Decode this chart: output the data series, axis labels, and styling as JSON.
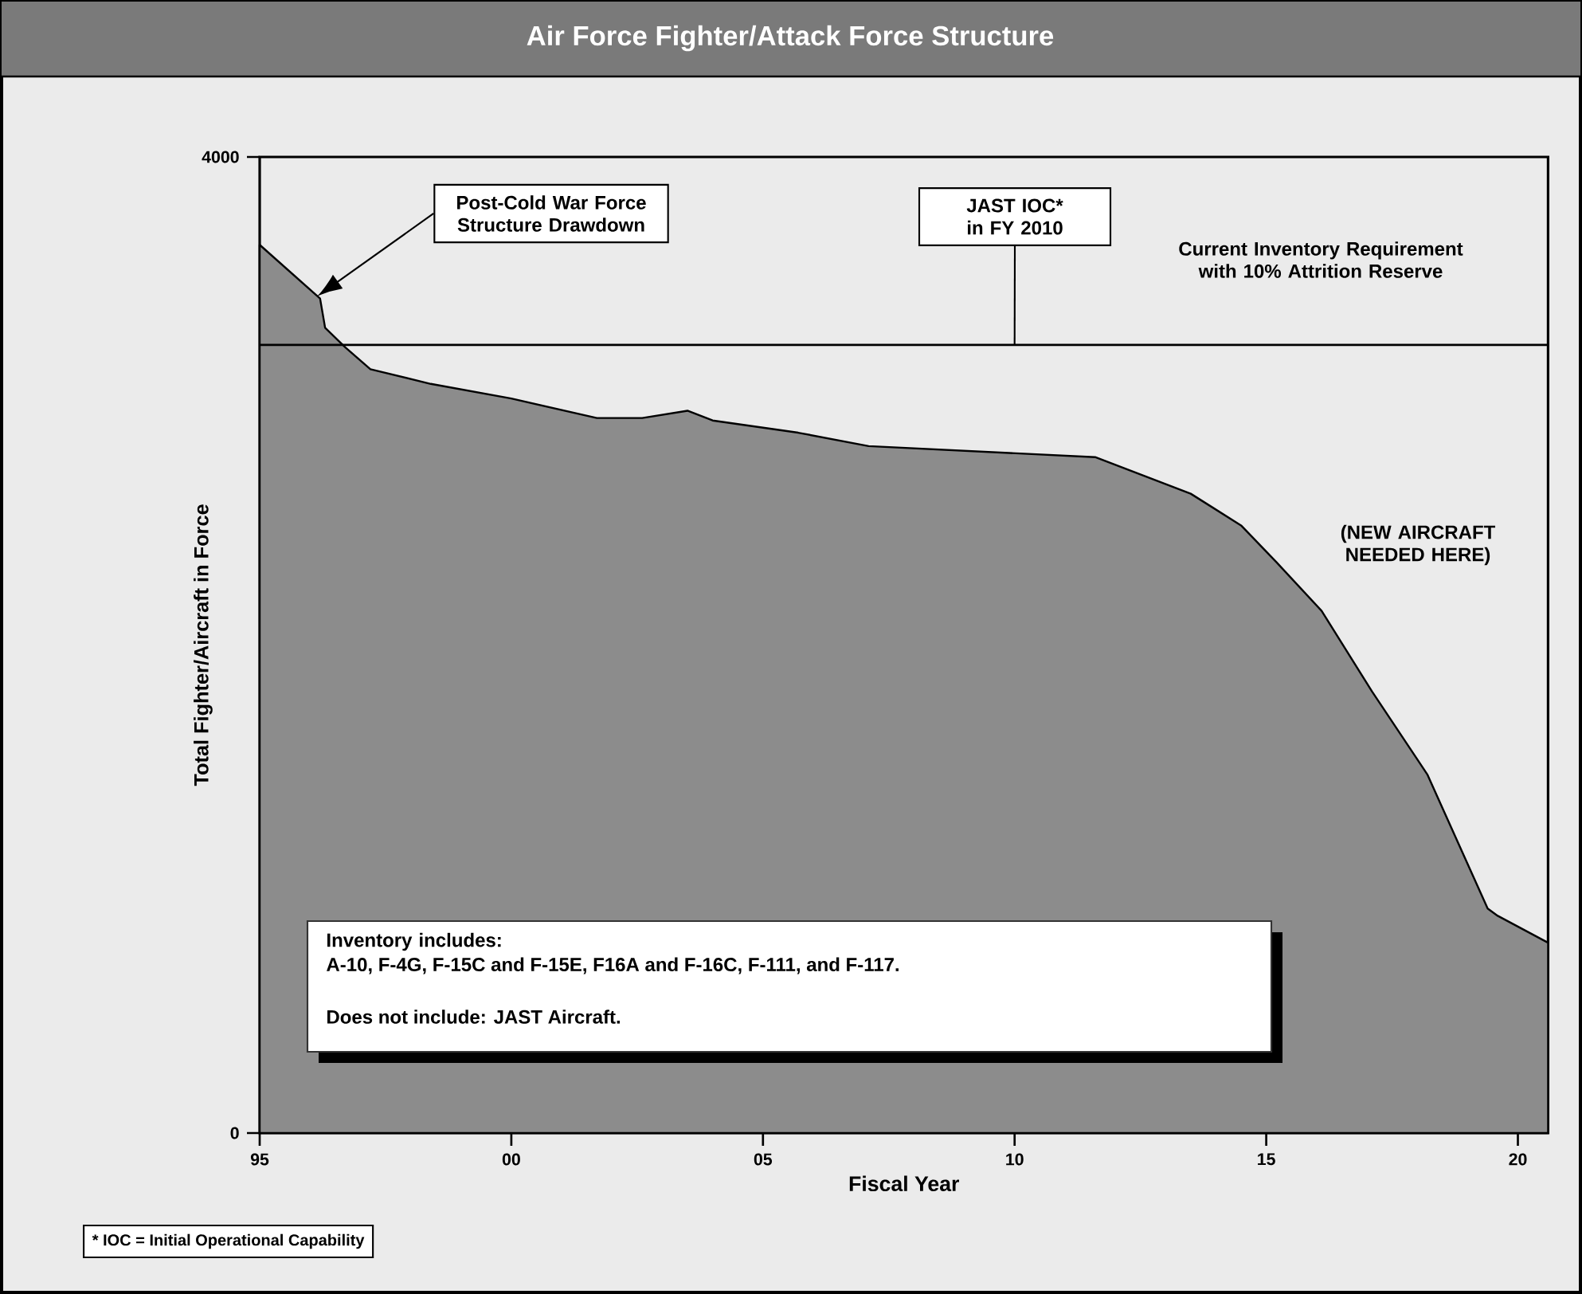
{
  "chart_data": {
    "type": "area",
    "title": "Air Force Fighter/Attack Force Structure",
    "xlabel": "Fiscal Year",
    "ylabel": "Total Fighter/Aircraft in Force",
    "color": "#8c8c8c",
    "x": [
      1995,
      1996.2,
      1996.3,
      1996.7,
      1997.2,
      1998.4,
      2000.0,
      2001.7,
      2002.6,
      2003.5,
      2004.0,
      2005.7,
      2007.1,
      2011.6,
      2013.5,
      2014.5,
      2015.2,
      2016.1,
      2017.1,
      2018.2,
      2019.4,
      2019.6,
      2020.6
    ],
    "values": [
      3640,
      3420,
      3300,
      3220,
      3130,
      3070,
      3010,
      2930,
      2930,
      2960,
      2920,
      2870,
      2815,
      2770,
      2620,
      2490,
      2340,
      2140,
      1810,
      1470,
      920,
      890,
      780
    ],
    "xlim": [
      1995,
      2020.6
    ],
    "xticks": [
      {
        "value": 1995,
        "label": "95"
      },
      {
        "value": 2000,
        "label": "00"
      },
      {
        "value": 2005,
        "label": "05"
      },
      {
        "value": 2010,
        "label": "10"
      },
      {
        "value": 2015,
        "label": "15"
      },
      {
        "value": 2020,
        "label": "20"
      }
    ],
    "ylim": [
      0,
      4000
    ],
    "yticks": [
      0,
      4000
    ],
    "ref_lines": [
      {
        "axis": "y",
        "value": 3230,
        "label": "Current Inventory Requirement with 10% Attrition Reserve",
        "color": "#000000"
      }
    ],
    "annotations": [
      "Post-Cold War Force Structure Drawdown",
      {
        "text": "JAST IOC* in FY 2010",
        "x": 2010,
        "y": 3230
      },
      "(NEW AIRCRAFT NEEDED HERE)",
      "Inventory includes:",
      "A-10, F-4G, F-15C and F-15E, F16A and F-16C, F-111, and F-117.",
      "Does not include: JAST Aircraft.",
      "* IOC = Initial Operational Capability"
    ]
  }
}
